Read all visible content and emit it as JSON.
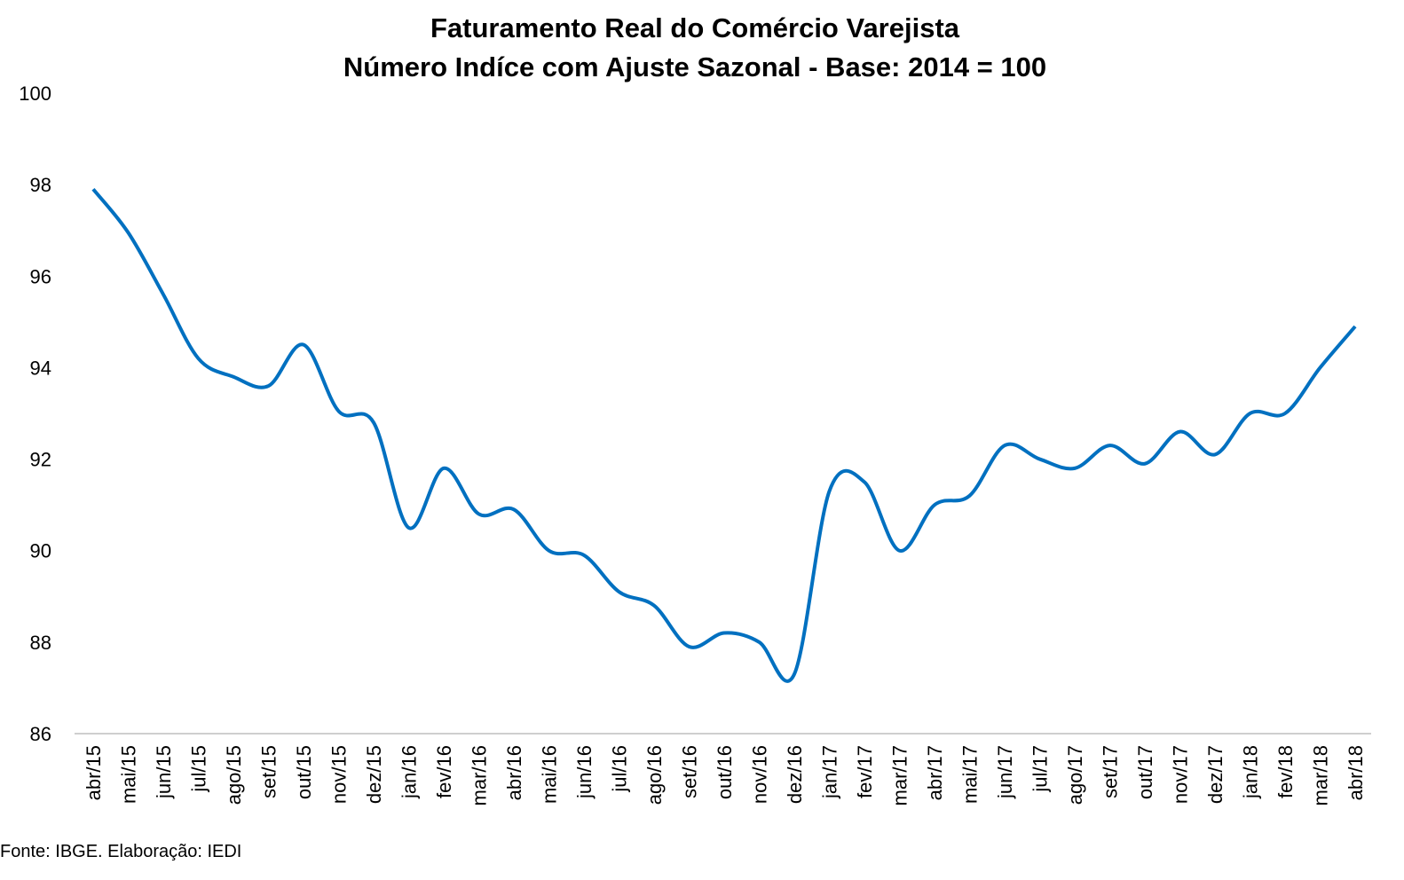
{
  "chart_data": {
    "type": "line",
    "title": "Faturamento Real do Comércio Varejista",
    "subtitle": "Número Indíce com Ajuste Sazonal - Base: 2014 = 100",
    "source": "Fonte: IBGE. Elaboração: IEDI",
    "categories": [
      "abr/15",
      "mai/15",
      "jun/15",
      "jul/15",
      "ago/15",
      "set/15",
      "out/15",
      "nov/15",
      "dez/15",
      "jan/16",
      "fev/16",
      "mar/16",
      "abr/16",
      "mai/16",
      "jun/16",
      "jul/16",
      "ago/16",
      "set/16",
      "out/16",
      "nov/16",
      "dez/16",
      "jan/17",
      "fev/17",
      "mar/17",
      "abr/17",
      "mai/17",
      "jun/17",
      "jul/17",
      "ago/17",
      "set/17",
      "out/17",
      "nov/17",
      "dez/17",
      "jan/18",
      "fev/18",
      "mar/18",
      "abr/18"
    ],
    "values": [
      97.9,
      96.95,
      95.6,
      94.2,
      93.8,
      93.6,
      94.5,
      93.05,
      92.8,
      90.5,
      91.8,
      90.8,
      90.9,
      90.0,
      89.9,
      89.1,
      88.8,
      87.9,
      88.2,
      88.0,
      87.3,
      91.3,
      91.5,
      90.0,
      91.0,
      91.2,
      92.3,
      92.0,
      91.8,
      92.3,
      91.9,
      92.6,
      92.1,
      93.0,
      93.0,
      94.0,
      94.9
    ],
    "color": "#0070c0",
    "ylim": [
      86,
      100
    ],
    "yticks": [
      86,
      88,
      90,
      92,
      94,
      96,
      98,
      100
    ],
    "grid": false
  }
}
